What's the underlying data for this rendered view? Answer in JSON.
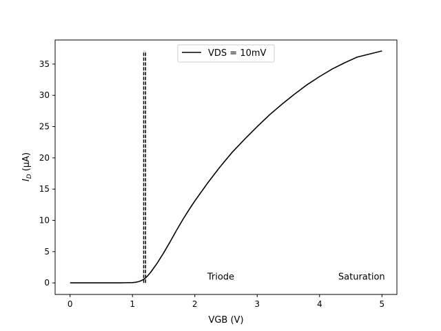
{
  "chart_data": {
    "type": "line",
    "xlabel": "VGB (V)",
    "ylabel_main": "I",
    "ylabel_sub": "D",
    "ylabel_unit": " (μA)",
    "xlim": [
      -0.24,
      5.24
    ],
    "ylim": [
      -1.85,
      38.85
    ],
    "xticks": [
      0,
      1,
      2,
      3,
      4,
      5
    ],
    "yticks": [
      0,
      5,
      10,
      15,
      20,
      25,
      30,
      35
    ],
    "grid": false,
    "legend_position": "upper center",
    "series": [
      {
        "name": "VDS = 10mV",
        "color": "#000000",
        "style": "solid",
        "x": [
          0,
          0.2,
          0.4,
          0.6,
          0.8,
          0.9,
          1.0,
          1.05,
          1.1,
          1.15,
          1.2,
          1.25,
          1.3,
          1.4,
          1.5,
          1.6,
          1.7,
          1.8,
          1.9,
          2.0,
          2.2,
          2.4,
          2.6,
          2.8,
          3.0,
          3.2,
          3.4,
          3.6,
          3.8,
          4.0,
          4.2,
          4.4,
          4.6,
          4.8,
          5.0
        ],
        "y": [
          0,
          0,
          0,
          0,
          0,
          0.02,
          0.05,
          0.1,
          0.2,
          0.4,
          0.7,
          1.2,
          1.8,
          3.2,
          4.8,
          6.5,
          8.3,
          10.0,
          11.6,
          13.1,
          15.9,
          18.5,
          20.9,
          23.0,
          25.0,
          26.9,
          28.6,
          30.2,
          31.7,
          33.0,
          34.2,
          35.2,
          36.1,
          36.6,
          37.1
        ]
      }
    ],
    "vlines": [
      {
        "x": 1.18,
        "ymin": 0,
        "ymax": 37.1,
        "style": "dashed",
        "color": "#000000"
      },
      {
        "x": 1.21,
        "ymin": 0,
        "ymax": 37.1,
        "style": "dashed",
        "color": "#000000"
      }
    ],
    "annotations": [
      {
        "text": "Triode",
        "x": 2.2,
        "y": 0.5
      },
      {
        "text": "Saturation",
        "x": 4.3,
        "y": 0.5
      }
    ]
  }
}
